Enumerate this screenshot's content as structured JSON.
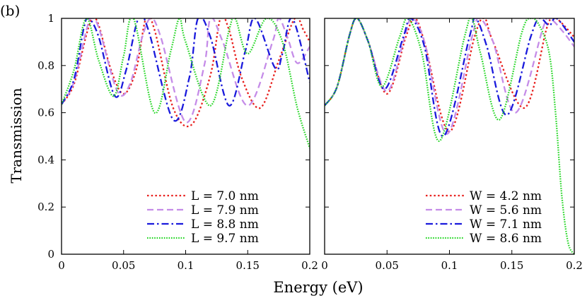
{
  "chart_data": [
    {
      "type": "line",
      "panel": "left",
      "xlim": [
        0,
        0.2
      ],
      "ylim": [
        0,
        1
      ],
      "xticks": [
        "0",
        "0.05",
        "0.1",
        "0.15",
        "0.2"
      ],
      "yticks": [
        "0",
        "0.2",
        "0.4",
        "0.6",
        "0.8",
        "1"
      ],
      "series": [
        {
          "name": "L = 7.0 nm",
          "color": "#e8201e",
          "dash": "dotted",
          "x": [
            0,
            0.01,
            0.02,
            0.025,
            0.03,
            0.04,
            0.05,
            0.06,
            0.068,
            0.075,
            0.09,
            0.105,
            0.12,
            0.128,
            0.135,
            0.145,
            0.16,
            0.175,
            0.188,
            0.195,
            0.2
          ],
          "y": [
            0.635,
            0.72,
            0.93,
            1.0,
            0.97,
            0.78,
            0.68,
            0.78,
            1.0,
            0.95,
            0.62,
            0.55,
            0.76,
            1.0,
            0.95,
            0.75,
            0.62,
            0.82,
            1.0,
            0.95,
            0.9
          ]
        },
        {
          "name": "L = 7.9 nm",
          "color": "#c58ce8",
          "dash": "dashed",
          "x": [
            0,
            0.01,
            0.02,
            0.024,
            0.03,
            0.045,
            0.055,
            0.065,
            0.072,
            0.08,
            0.1,
            0.115,
            0.12,
            0.13,
            0.15,
            0.17,
            0.175,
            0.182,
            0.19,
            0.2
          ],
          "y": [
            0.635,
            0.73,
            0.95,
            1.0,
            0.96,
            0.69,
            0.72,
            0.92,
            1.0,
            0.92,
            0.56,
            0.8,
            1.0,
            0.9,
            0.63,
            0.9,
            1.0,
            0.92,
            0.81,
            0.88
          ]
        },
        {
          "name": "L = 8.8 nm",
          "color": "#1a1adc",
          "dash": "dashdot",
          "x": [
            0,
            0.01,
            0.018,
            0.022,
            0.03,
            0.043,
            0.052,
            0.062,
            0.07,
            0.09,
            0.103,
            0.11,
            0.12,
            0.135,
            0.148,
            0.156,
            0.172,
            0.178,
            0.186,
            0.2
          ],
          "y": [
            0.635,
            0.74,
            0.96,
            1.0,
            0.92,
            0.67,
            0.78,
            1.0,
            0.95,
            0.57,
            0.75,
            1.0,
            0.92,
            0.63,
            0.86,
            1.0,
            0.79,
            0.85,
            1.0,
            0.73
          ]
        },
        {
          "name": "L = 9.7 nm",
          "color": "#22d622",
          "dash": "fine",
          "x": [
            0,
            0.01,
            0.02,
            0.03,
            0.042,
            0.05,
            0.058,
            0.075,
            0.088,
            0.095,
            0.1,
            0.12,
            0.135,
            0.14,
            0.15,
            0.165,
            0.178,
            0.19,
            0.2
          ],
          "y": [
            0.635,
            0.78,
            1.0,
            0.82,
            0.67,
            0.84,
            1.0,
            0.6,
            0.86,
            1.0,
            0.9,
            0.63,
            0.95,
            1.0,
            0.85,
            1.0,
            0.9,
            0.62,
            0.45
          ]
        }
      ]
    },
    {
      "type": "line",
      "panel": "right",
      "xlim": [
        0,
        0.2
      ],
      "ylim": [
        0,
        1
      ],
      "xticks": [
        "0",
        "0.05",
        "0.1",
        "0.15",
        "0.2"
      ],
      "yticks": [
        "0",
        "0.2",
        "0.4",
        "0.6",
        "0.8",
        "1"
      ],
      "series": [
        {
          "name": "W = 4.2 nm",
          "color": "#e8201e",
          "dash": "dotted",
          "x": [
            0,
            0.01,
            0.02,
            0.026,
            0.035,
            0.05,
            0.065,
            0.072,
            0.08,
            0.1,
            0.12,
            0.128,
            0.135,
            0.16,
            0.178,
            0.184,
            0.19,
            0.2
          ],
          "y": [
            0.63,
            0.71,
            0.93,
            1.0,
            0.9,
            0.68,
            0.92,
            1.0,
            0.9,
            0.52,
            0.92,
            1.0,
            0.9,
            0.62,
            0.96,
            1.0,
            0.98,
            0.92
          ]
        },
        {
          "name": "W = 5.6 nm",
          "color": "#c58ce8",
          "dash": "dashed",
          "x": [
            0,
            0.01,
            0.02,
            0.026,
            0.035,
            0.05,
            0.064,
            0.07,
            0.08,
            0.098,
            0.118,
            0.124,
            0.135,
            0.153,
            0.175,
            0.18,
            0.19,
            0.2
          ],
          "y": [
            0.63,
            0.71,
            0.93,
            1.0,
            0.9,
            0.69,
            0.92,
            1.0,
            0.9,
            0.51,
            0.92,
            1.0,
            0.9,
            0.6,
            0.96,
            1.0,
            0.95,
            0.88
          ]
        },
        {
          "name": "W = 7.1 nm",
          "color": "#1a1adc",
          "dash": "dashdot",
          "x": [
            0,
            0.01,
            0.02,
            0.026,
            0.035,
            0.048,
            0.063,
            0.069,
            0.08,
            0.095,
            0.116,
            0.121,
            0.13,
            0.146,
            0.165,
            0.172,
            0.18,
            0.186,
            0.2
          ],
          "y": [
            0.63,
            0.71,
            0.93,
            1.0,
            0.9,
            0.7,
            0.92,
            1.0,
            0.88,
            0.5,
            0.92,
            1.0,
            0.88,
            0.59,
            0.92,
            1.0,
            0.97,
            1.0,
            0.9
          ]
        },
        {
          "name": "W = 8.6 nm",
          "color": "#22d622",
          "dash": "fine",
          "x": [
            0,
            0.01,
            0.02,
            0.026,
            0.035,
            0.046,
            0.06,
            0.067,
            0.078,
            0.092,
            0.112,
            0.118,
            0.125,
            0.14,
            0.158,
            0.165,
            0.172,
            0.18,
            0.185,
            0.19,
            0.195,
            0.2
          ],
          "y": [
            0.63,
            0.71,
            0.93,
            1.0,
            0.9,
            0.71,
            0.92,
            1.0,
            0.85,
            0.48,
            0.92,
            1.0,
            0.85,
            0.57,
            0.94,
            1.0,
            0.97,
            0.85,
            0.6,
            0.25,
            0.05,
            0.0
          ]
        }
      ]
    }
  ],
  "figure": {
    "panel_label": "(b)",
    "ylabel": "Transmission",
    "xlabel": "Energy (eV)"
  }
}
